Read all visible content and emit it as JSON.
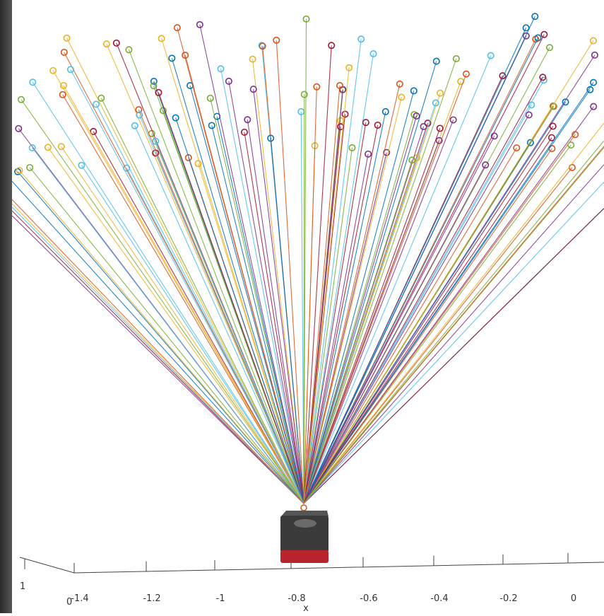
{
  "x_axis": {
    "label": "x",
    "ticks": [
      "-1.4",
      "-1.2",
      "-1",
      "-0.8",
      "-0.6",
      "-0.4",
      "-0.2",
      "0"
    ]
  },
  "y_axis": {
    "ticks": [
      "1",
      "0"
    ]
  }
}
